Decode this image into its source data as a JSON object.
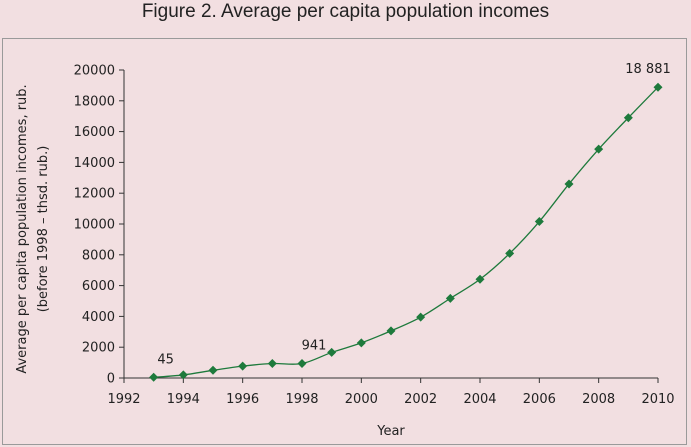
{
  "figure_title": "Figure 2. Average per capita population incomes",
  "chart_data": {
    "type": "line",
    "title": "Figure 2. Average per capita population incomes",
    "xlabel": "Year",
    "ylabel_lines": [
      "Average per capita population incomes, rub.",
      "(before 1998 – thsd. rub.)"
    ],
    "xlim": [
      1992,
      2010
    ],
    "ylim": [
      0,
      20000
    ],
    "x_ticks": [
      1992,
      1994,
      1996,
      1998,
      2000,
      2002,
      2004,
      2006,
      2008,
      2010
    ],
    "x_tick_labels": [
      "1992",
      "1994",
      "1996",
      "1998",
      "2000",
      "2002",
      "2004",
      "2006",
      "2008",
      "2010"
    ],
    "y_ticks": [
      0,
      2000,
      4000,
      6000,
      8000,
      10000,
      12000,
      14000,
      16000,
      18000,
      20000
    ],
    "y_tick_labels": [
      "0",
      "2000",
      "4000",
      "6000",
      "8000",
      "10000",
      "12000",
      "14000",
      "16000",
      "18000",
      "20000"
    ],
    "grid": false,
    "series": [
      {
        "x": [
          1993,
          1994,
          1995,
          1996,
          1997,
          1998,
          1999,
          2000,
          2001,
          2002,
          2003,
          2004,
          2005,
          2006,
          2007,
          2008,
          2009,
          2010
        ],
        "values": [
          45,
          200,
          500,
          770,
          940,
          941,
          1660,
          2280,
          3060,
          3950,
          5170,
          6410,
          8090,
          10160,
          12600,
          14860,
          16900,
          18881
        ],
        "color": "#1e7a3c",
        "marker": "diamond"
      }
    ],
    "annotations": [
      {
        "x": 1993,
        "y": 45,
        "text": "45"
      },
      {
        "x": 1998,
        "y": 941,
        "text": "941"
      },
      {
        "x": 2010,
        "y": 18881,
        "text": "18 881"
      }
    ]
  }
}
